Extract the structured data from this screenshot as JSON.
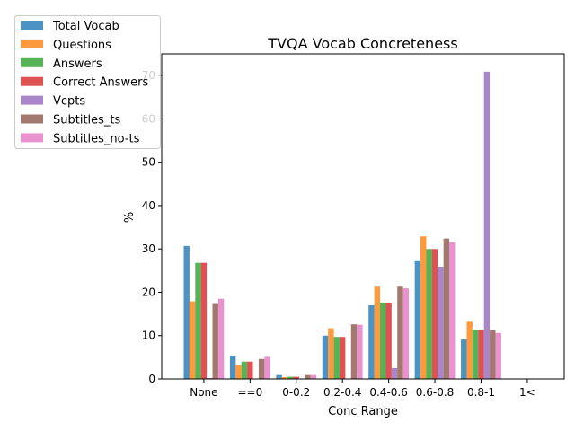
{
  "chart_data": {
    "type": "bar",
    "title": "TVQA Vocab Concreteness",
    "xlabel": "Conc Range",
    "ylabel": "%",
    "categories": [
      "None",
      "==0",
      "0-0.2",
      "0.2-0.4",
      "0.4-0.6",
      "0.6-0.8",
      "0.8-1",
      "1<"
    ],
    "ylim": [
      0,
      75
    ],
    "yticks": [
      0,
      10,
      20,
      30,
      40,
      50,
      60,
      70
    ],
    "grid": false,
    "legend_position": "top-left",
    "series": [
      {
        "name": "Total Vocab",
        "color": "#1f77b4",
        "values": [
          30.7,
          5.4,
          0.9,
          10.0,
          17.0,
          27.2,
          9.1,
          0
        ]
      },
      {
        "name": "Questions",
        "color": "#ff7f0e",
        "values": [
          17.9,
          3.1,
          0.4,
          11.7,
          21.3,
          32.9,
          13.2,
          0
        ]
      },
      {
        "name": "Answers",
        "color": "#2ca02c",
        "values": [
          26.8,
          4.0,
          0.5,
          9.7,
          17.6,
          30.0,
          11.4,
          0
        ]
      },
      {
        "name": "Correct Answers",
        "color": "#d62728",
        "values": [
          26.8,
          4.0,
          0.5,
          9.7,
          17.6,
          30.0,
          11.4,
          0
        ]
      },
      {
        "name": "Vcpts",
        "color": "#9467bd",
        "values": [
          0.2,
          0.1,
          0.1,
          0.1,
          2.5,
          25.9,
          70.9,
          0
        ]
      },
      {
        "name": "Subtitles_ts",
        "color": "#8c564b",
        "values": [
          17.3,
          4.6,
          0.9,
          12.6,
          21.3,
          32.4,
          11.2,
          0
        ]
      },
      {
        "name": "Subtitles_no-ts",
        "color": "#e377c2",
        "values": [
          18.5,
          5.1,
          0.9,
          12.5,
          20.9,
          31.5,
          10.6,
          0
        ]
      }
    ]
  }
}
